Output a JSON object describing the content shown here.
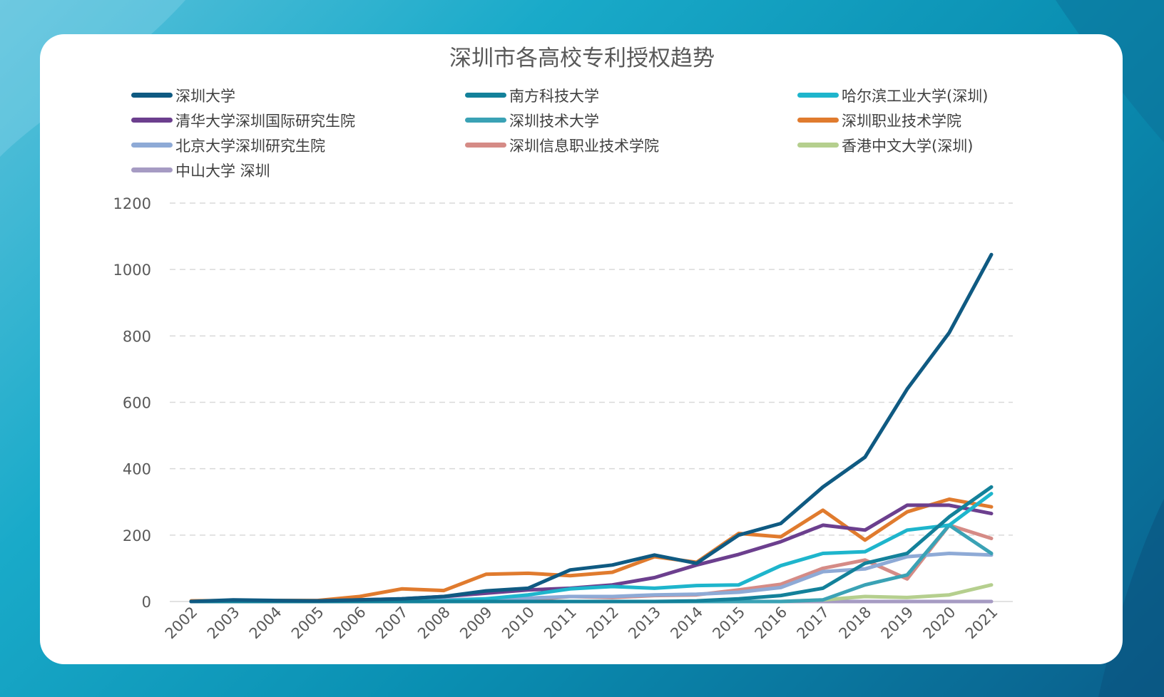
{
  "chart_data": {
    "type": "line",
    "title": "深圳市各高校专利授权趋势",
    "xlabel": "",
    "ylabel": "",
    "ylim": [
      0,
      1200
    ],
    "yticks": [
      0,
      200,
      400,
      600,
      800,
      1000,
      1200
    ],
    "grid": "horizontal-dashed",
    "legend_position": "top",
    "categories": [
      "2002",
      "2003",
      "2004",
      "2005",
      "2006",
      "2007",
      "2008",
      "2009",
      "2010",
      "2011",
      "2012",
      "2013",
      "2014",
      "2015",
      "2016",
      "2017",
      "2018",
      "2019",
      "2020",
      "2021"
    ],
    "series": [
      {
        "name": "深圳大学",
        "color": "#0f5a82",
        "values": [
          0,
          5,
          3,
          2,
          5,
          8,
          15,
          32,
          40,
          95,
          110,
          140,
          115,
          200,
          235,
          345,
          435,
          640,
          810,
          1045
        ]
      },
      {
        "name": "南方科技大学",
        "color": "#13819a",
        "values": [
          0,
          0,
          0,
          0,
          0,
          0,
          0,
          0,
          0,
          0,
          0,
          0,
          2,
          8,
          18,
          40,
          115,
          145,
          255,
          345
        ]
      },
      {
        "name": "哈尔滨工业大学(深圳)",
        "color": "#1eb5cc",
        "values": [
          0,
          0,
          0,
          0,
          0,
          0,
          2,
          8,
          20,
          38,
          45,
          40,
          48,
          50,
          108,
          145,
          150,
          215,
          230,
          325
        ]
      },
      {
        "name": "清华大学深圳国际研究生院",
        "color": "#6c3f8e",
        "values": [
          0,
          2,
          2,
          2,
          5,
          8,
          15,
          25,
          35,
          40,
          50,
          72,
          110,
          142,
          180,
          230,
          215,
          290,
          290,
          265
        ]
      },
      {
        "name": "深圳技术大学",
        "color": "#3aa2b5",
        "values": [
          0,
          0,
          0,
          0,
          0,
          0,
          0,
          0,
          0,
          0,
          0,
          0,
          0,
          0,
          0,
          5,
          50,
          80,
          230,
          145
        ]
      },
      {
        "name": "深圳职业技术学院",
        "color": "#e07b2e",
        "values": [
          2,
          3,
          3,
          3,
          15,
          38,
          33,
          82,
          85,
          78,
          88,
          135,
          118,
          205,
          195,
          275,
          185,
          270,
          308,
          285
        ]
      },
      {
        "name": "北京大学深圳研究生院",
        "color": "#8eaad6",
        "values": [
          0,
          0,
          0,
          0,
          0,
          2,
          5,
          8,
          10,
          15,
          15,
          20,
          22,
          28,
          42,
          90,
          98,
          135,
          145,
          140
        ]
      },
      {
        "name": "深圳信息职业技术学院",
        "color": "#d58b86",
        "values": [
          0,
          0,
          0,
          0,
          0,
          0,
          0,
          2,
          5,
          15,
          12,
          18,
          20,
          35,
          52,
          100,
          125,
          68,
          230,
          190
        ]
      },
      {
        "name": "香港中文大学(深圳)",
        "color": "#b5cf8e",
        "values": [
          0,
          0,
          0,
          0,
          0,
          0,
          0,
          0,
          0,
          0,
          0,
          0,
          0,
          0,
          0,
          5,
          15,
          12,
          20,
          50
        ]
      },
      {
        "name": "中山大学 深圳",
        "color": "#a69bc3",
        "values": [
          0,
          0,
          0,
          0,
          0,
          0,
          0,
          0,
          0,
          0,
          0,
          0,
          0,
          0,
          0,
          0,
          0,
          0,
          0,
          0
        ]
      }
    ]
  }
}
